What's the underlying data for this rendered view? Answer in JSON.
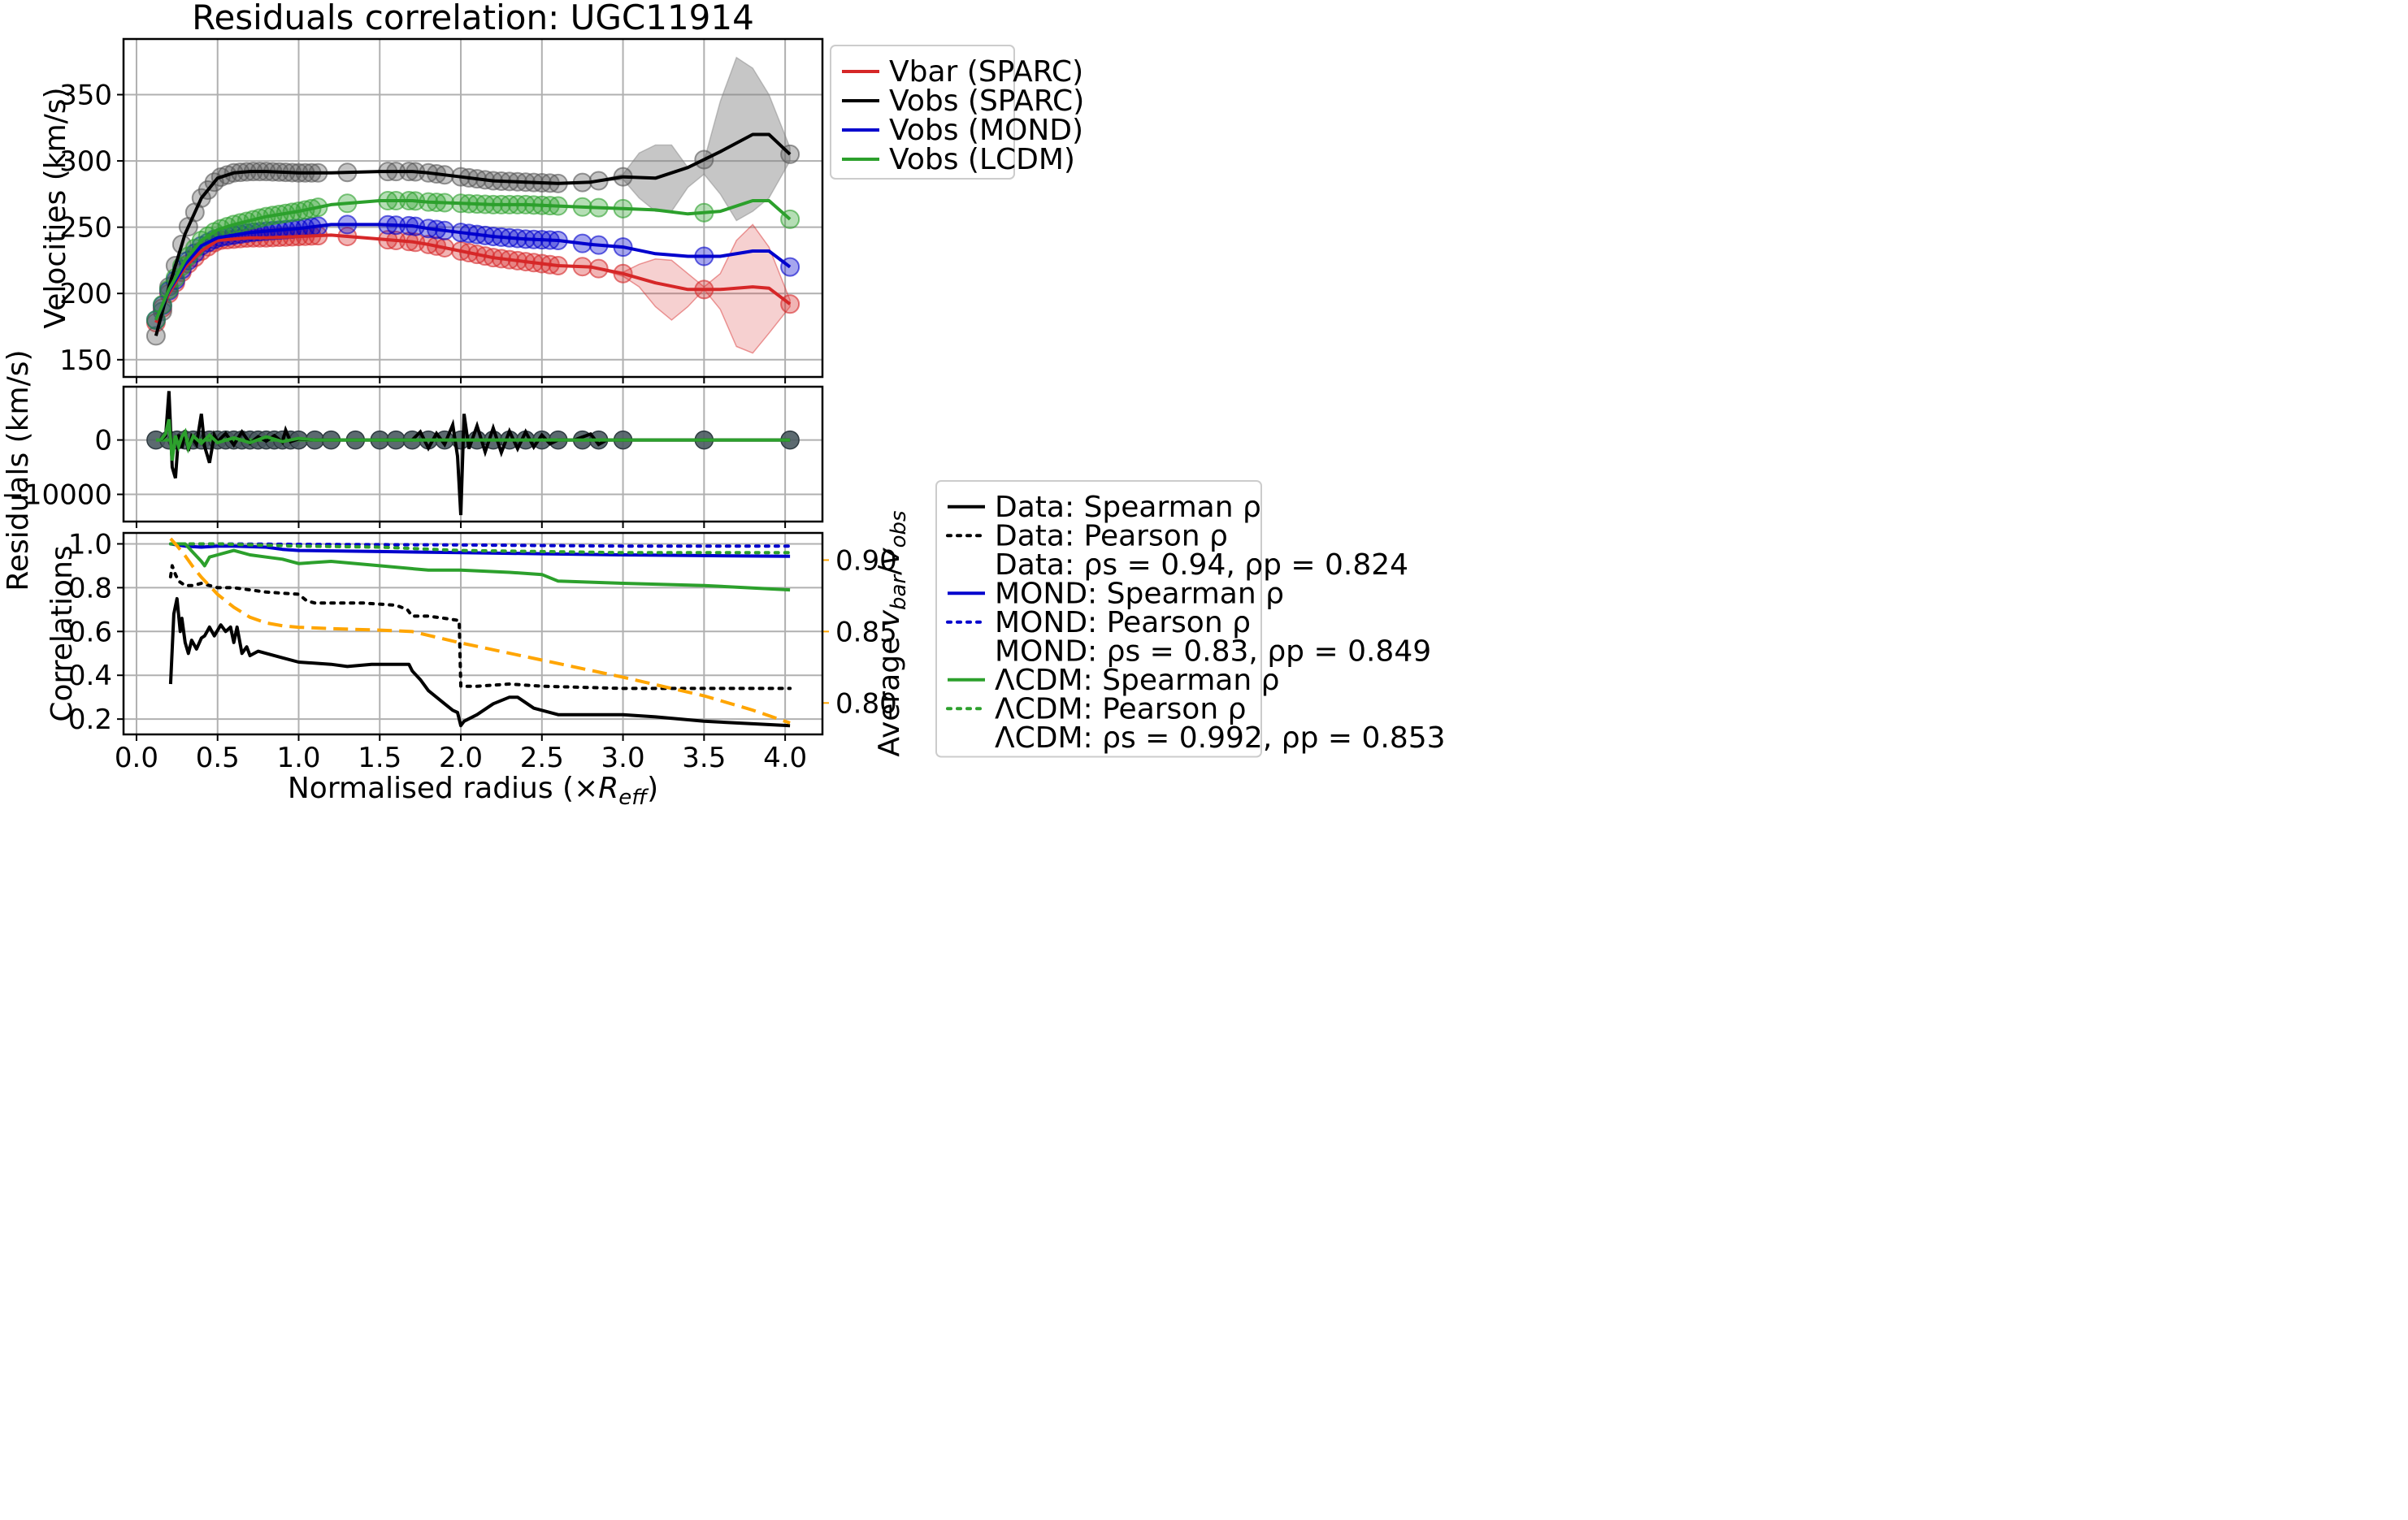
{
  "chart_data": {
    "type": "line",
    "title": "Residuals correlation: UGC11914",
    "xlabel": "Normalised radius (×R_eff)",
    "xlabel_main": "Normalised radius (×",
    "xlabel_sym": "R",
    "xlabel_sub": "eff",
    "xlabel_close": ")",
    "xlim": [
      -0.08,
      4.23
    ],
    "xticks": [
      "0.0",
      "0.5",
      "1.0",
      "1.5",
      "2.0",
      "2.5",
      "3.0",
      "3.5",
      "4.0"
    ],
    "colors": {
      "vbar": "#d62728",
      "sparc": "#000000",
      "mond": "#0000cd",
      "lcdm": "#2ca02c",
      "average": "#ffa500"
    },
    "velocities": {
      "ylabel": "Velocities (km/s)",
      "ylim": [
        137,
        392
      ],
      "yticks": [
        150,
        200,
        250,
        300,
        350
      ],
      "x": [
        0.12,
        0.2,
        0.3,
        0.4,
        0.5,
        0.6,
        0.7,
        0.8,
        1.0,
        1.2,
        1.5,
        1.7,
        1.8,
        2.0,
        2.2,
        2.4,
        2.6,
        2.8,
        3.0,
        3.2,
        3.4,
        3.6,
        3.8,
        3.9,
        4.03
      ],
      "series": [
        {
          "name": "Vbar (SPARC)",
          "key": "vbar",
          "values": [
            178,
            200,
            220,
            232,
            240,
            241,
            242,
            242,
            243,
            244,
            241,
            239,
            237,
            232,
            227,
            224,
            221,
            220,
            215,
            208,
            203,
            203,
            205,
            204,
            192
          ]
        },
        {
          "name": "Vobs (SPARC)",
          "key": "sparc",
          "values": [
            168,
            205,
            245,
            272,
            287,
            291,
            292,
            292,
            291,
            291,
            292,
            292,
            291,
            288,
            285,
            284,
            283,
            284,
            288,
            287,
            295,
            307,
            320,
            320,
            305
          ]
        },
        {
          "name": "Vobs (MOND)",
          "key": "mond",
          "values": [
            180,
            202,
            222,
            236,
            242,
            244,
            246,
            247,
            249,
            252,
            252,
            251,
            249,
            246,
            243,
            241,
            240,
            237,
            235,
            230,
            228,
            228,
            232,
            232,
            220
          ]
        },
        {
          "name": "Vobs (LCDM)",
          "key": "lcdm",
          "values": [
            180,
            203,
            225,
            240,
            248,
            252,
            255,
            258,
            262,
            267,
            270,
            270,
            269,
            268,
            267,
            267,
            266,
            265,
            264,
            263,
            260,
            262,
            270,
            270,
            256
          ]
        }
      ],
      "bands": {
        "x": [
          2.8,
          3.0,
          3.1,
          3.2,
          3.3,
          3.4,
          3.5,
          3.6,
          3.7,
          3.8,
          3.9,
          4.03
        ],
        "sparc_low": [
          284,
          286,
          272,
          262,
          262,
          280,
          290,
          275,
          255,
          262,
          272,
          300
        ],
        "sparc_high": [
          284,
          290,
          306,
          312,
          312,
          295,
          300,
          345,
          378,
          370,
          350,
          310
        ],
        "vbar_low": [
          220,
          213,
          205,
          190,
          180,
          190,
          203,
          188,
          160,
          155,
          170,
          190
        ],
        "vbar_high": [
          220,
          216,
          222,
          226,
          225,
          215,
          205,
          215,
          240,
          252,
          235,
          195
        ]
      }
    },
    "residuals": {
      "ylabel": "Residuals (km/s)",
      "ylim": [
        -15000,
        9800
      ],
      "yticks": [
        0,
        -10000
      ],
      "ytick_labels": [
        "0",
        "−10000"
      ],
      "points_x": [
        0.12,
        0.2,
        0.25,
        0.3,
        0.35,
        0.4,
        0.45,
        0.5,
        0.55,
        0.6,
        0.65,
        0.7,
        0.75,
        0.8,
        0.85,
        0.9,
        0.95,
        1.0,
        1.1,
        1.2,
        1.35,
        1.5,
        1.6,
        1.7,
        1.8,
        1.9,
        2.0,
        2.1,
        2.2,
        2.3,
        2.4,
        2.5,
        2.6,
        2.75,
        2.85,
        3.0,
        3.5,
        4.03
      ],
      "black_x": [
        0.15,
        0.18,
        0.2,
        0.22,
        0.24,
        0.26,
        0.28,
        0.3,
        0.32,
        0.34,
        0.37,
        0.4,
        0.42,
        0.45,
        0.48,
        0.5,
        0.55,
        0.6,
        0.65,
        0.7,
        0.75,
        0.8,
        0.85,
        0.9,
        0.92,
        0.95,
        1.0,
        1.1,
        1.2,
        1.3,
        1.5,
        1.65,
        1.7,
        1.75,
        1.8,
        1.85,
        1.9,
        1.95,
        1.98,
        2.0,
        2.02,
        2.05,
        2.1,
        2.15,
        2.2,
        2.25,
        2.3,
        2.35,
        2.4,
        2.45,
        2.5,
        2.55,
        2.6,
        2.7,
        2.8,
        2.85,
        2.9,
        3.0,
        4.03
      ],
      "black_y": [
        0,
        800,
        9000,
        -5000,
        -7000,
        1000,
        -1500,
        1800,
        -2000,
        600,
        -800,
        4800,
        -1200,
        -4200,
        900,
        -300,
        1200,
        -900,
        1500,
        -600,
        600,
        -200,
        800,
        -400,
        1800,
        -300,
        200,
        0,
        0,
        0,
        0,
        0,
        0,
        1500,
        -1500,
        1200,
        -800,
        2800,
        -3000,
        -13800,
        4800,
        -1600,
        2600,
        -2200,
        2200,
        -2300,
        1600,
        -1600,
        1500,
        -1300,
        900,
        -700,
        0,
        0,
        1100,
        -800,
        0,
        0,
        0
      ],
      "green_x": [
        0.15,
        0.18,
        0.2,
        0.22,
        0.24,
        0.26,
        0.28,
        0.3,
        0.32,
        0.35,
        0.4,
        0.45,
        0.5,
        0.6,
        0.7,
        0.8,
        0.9,
        1.0,
        1.1,
        4.03
      ],
      "green_y": [
        0,
        1200,
        3800,
        -3800,
        800,
        -1200,
        600,
        1500,
        -1500,
        700,
        -600,
        900,
        -500,
        400,
        -500,
        600,
        -300,
        300,
        0,
        0
      ]
    },
    "correlations": {
      "ylabel": "Correlations",
      "ylim": [
        0.13,
        1.05
      ],
      "yticks": [
        "0.2",
        "0.4",
        "0.6",
        "0.8",
        "1.0"
      ],
      "y2label_main": "Average",
      "y2label_expr": "v",
      "y2label_sub1": "bar",
      "y2label_sub2": "obs",
      "y2lim": [
        0.778,
        0.919
      ],
      "y2ticks": [
        "0.80",
        "0.85",
        "0.90"
      ],
      "series": [
        {
          "name": "Data: Spearman ρ",
          "key": "sparc",
          "style": "solid",
          "x": [
            0.21,
            0.23,
            0.25,
            0.27,
            0.28,
            0.3,
            0.32,
            0.34,
            0.37,
            0.4,
            0.42,
            0.45,
            0.48,
            0.52,
            0.55,
            0.58,
            0.6,
            0.62,
            0.65,
            0.68,
            0.7,
            0.75,
            0.8,
            0.9,
            1.0,
            1.2,
            1.3,
            1.45,
            1.6,
            1.68,
            1.7,
            1.75,
            1.8,
            1.85,
            1.9,
            1.95,
            1.98,
            2.0,
            2.02,
            2.1,
            2.2,
            2.3,
            2.35,
            2.45,
            2.6,
            2.8,
            3.0,
            3.2,
            3.5,
            4.03
          ],
          "values": [
            0.36,
            0.68,
            0.75,
            0.6,
            0.66,
            0.55,
            0.5,
            0.56,
            0.52,
            0.57,
            0.58,
            0.62,
            0.58,
            0.63,
            0.6,
            0.62,
            0.55,
            0.62,
            0.5,
            0.53,
            0.49,
            0.51,
            0.5,
            0.48,
            0.46,
            0.45,
            0.44,
            0.45,
            0.45,
            0.45,
            0.42,
            0.38,
            0.33,
            0.3,
            0.27,
            0.24,
            0.23,
            0.17,
            0.19,
            0.22,
            0.27,
            0.3,
            0.3,
            0.25,
            0.22,
            0.22,
            0.22,
            0.21,
            0.19,
            0.17
          ]
        },
        {
          "name": "Data: Pearson ρ",
          "key": "sparc",
          "style": "dotted",
          "x": [
            0.21,
            0.22,
            0.24,
            0.26,
            0.28,
            0.3,
            0.35,
            0.4,
            0.5,
            0.6,
            0.7,
            0.8,
            1.0,
            1.05,
            1.1,
            1.2,
            1.4,
            1.6,
            1.67,
            1.7,
            1.8,
            1.9,
            1.99,
            2.0,
            2.1,
            2.3,
            2.5,
            3.0,
            4.03
          ],
          "values": [
            0.85,
            0.9,
            0.86,
            0.83,
            0.82,
            0.81,
            0.81,
            0.82,
            0.8,
            0.8,
            0.79,
            0.78,
            0.77,
            0.74,
            0.73,
            0.73,
            0.73,
            0.72,
            0.7,
            0.67,
            0.67,
            0.66,
            0.65,
            0.35,
            0.35,
            0.36,
            0.35,
            0.34,
            0.34
          ]
        },
        {
          "name": "MOND: Spearman ρ",
          "key": "mond",
          "style": "solid",
          "x": [
            0.21,
            0.3,
            0.4,
            0.5,
            0.6,
            0.8,
            0.9,
            1.0,
            1.5,
            2.0,
            2.5,
            3.0,
            4.03
          ],
          "values": [
            1.0,
            0.99,
            0.985,
            0.99,
            0.99,
            0.985,
            0.975,
            0.97,
            0.965,
            0.96,
            0.955,
            0.95,
            0.943
          ]
        },
        {
          "name": "MOND: Pearson ρ",
          "key": "mond",
          "style": "dotted",
          "x": [
            0.21,
            0.5,
            1.0,
            2.0,
            3.0,
            4.03
          ],
          "values": [
            1.0,
            1.0,
            0.998,
            0.995,
            0.99,
            0.99
          ]
        },
        {
          "name": "ΛCDM: Spearman ρ",
          "key": "lcdm",
          "style": "solid",
          "x": [
            0.21,
            0.3,
            0.35,
            0.4,
            0.42,
            0.45,
            0.5,
            0.6,
            0.7,
            0.8,
            0.9,
            1.0,
            1.2,
            1.5,
            1.8,
            2.0,
            2.3,
            2.5,
            2.6,
            3.0,
            3.5,
            4.03
          ],
          "values": [
            1.0,
            1.0,
            0.96,
            0.92,
            0.9,
            0.94,
            0.95,
            0.97,
            0.95,
            0.94,
            0.93,
            0.91,
            0.92,
            0.9,
            0.88,
            0.88,
            0.87,
            0.86,
            0.83,
            0.82,
            0.81,
            0.79
          ]
        },
        {
          "name": "ΛCDM: Pearson ρ",
          "key": "lcdm",
          "style": "dotted",
          "x": [
            0.21,
            0.5,
            1.0,
            1.5,
            2.0,
            2.5,
            3.0,
            4.03
          ],
          "values": [
            1.0,
            1.0,
            0.99,
            0.985,
            0.97,
            0.965,
            0.96,
            0.96
          ]
        }
      ],
      "average": {
        "name": "Average v_bar/v_obs",
        "x": [
          0.21,
          0.25,
          0.3,
          0.35,
          0.4,
          0.5,
          0.6,
          0.7,
          0.8,
          0.9,
          1.0,
          1.2,
          1.5,
          1.7,
          2.0,
          2.5,
          3.0,
          3.5,
          3.8,
          4.03
        ],
        "values": [
          0.915,
          0.91,
          0.903,
          0.895,
          0.888,
          0.876,
          0.867,
          0.86,
          0.856,
          0.854,
          0.853,
          0.852,
          0.851,
          0.85,
          0.842,
          0.83,
          0.818,
          0.805,
          0.795,
          0.786
        ]
      }
    },
    "legend_top": {
      "placement": "outside-right-top",
      "entries": [
        {
          "label": "Vbar (SPARC)",
          "key": "vbar"
        },
        {
          "label": "Vobs (SPARC)",
          "key": "sparc"
        },
        {
          "label": "Vobs (MOND)",
          "key": "mond"
        },
        {
          "label": "Vobs (LCDM)",
          "key": "lcdm"
        }
      ]
    },
    "legend_bottom": {
      "placement": "outside-right-bottom",
      "entries": [
        {
          "label": "Data: Spearman ρ",
          "key": "sparc",
          "style": "solid"
        },
        {
          "label": "Data: Pearson ρ",
          "key": "sparc",
          "style": "dotted"
        },
        {
          "label": "Data: ρs = 0.94, ρp = 0.824",
          "key": "none",
          "style": "none"
        },
        {
          "label": "MOND: Spearman ρ",
          "key": "mond",
          "style": "solid"
        },
        {
          "label": "MOND: Pearson ρ",
          "key": "mond",
          "style": "dotted"
        },
        {
          "label": "MOND: ρs = 0.83, ρp = 0.849",
          "key": "none",
          "style": "none"
        },
        {
          "label": "ΛCDM: Spearman ρ",
          "key": "lcdm",
          "style": "solid"
        },
        {
          "label": "ΛCDM: Pearson ρ",
          "key": "lcdm",
          "style": "dotted"
        },
        {
          "label": "ΛCDM: ρs = 0.992, ρp = 0.853",
          "key": "none",
          "style": "none"
        }
      ]
    }
  }
}
